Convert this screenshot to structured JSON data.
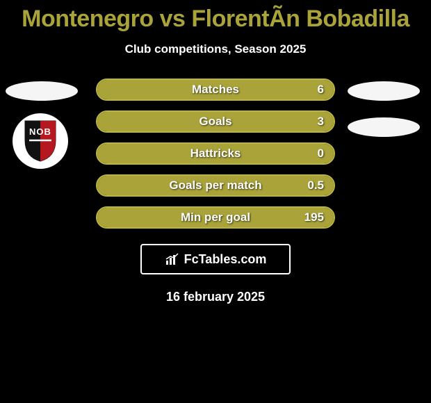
{
  "title": "Montenegro vs FlorentÃ­n Bobadilla",
  "subtitle": "Club competitions, Season 2025",
  "date": "16 february 2025",
  "branding": {
    "label": "FcTables.com"
  },
  "badge": {
    "text": "NOB"
  },
  "colors": {
    "accent": "#a9a33a",
    "accent_light": "#bcb641",
    "background": "#000000",
    "text": "#ffffff"
  },
  "stats": [
    {
      "label": "Matches",
      "value": "6",
      "fill_pct": 100
    },
    {
      "label": "Goals",
      "value": "3",
      "fill_pct": 100
    },
    {
      "label": "Hattricks",
      "value": "0",
      "fill_pct": 100
    },
    {
      "label": "Goals per match",
      "value": "0.5",
      "fill_pct": 100
    },
    {
      "label": "Min per goal",
      "value": "195",
      "fill_pct": 100
    }
  ]
}
